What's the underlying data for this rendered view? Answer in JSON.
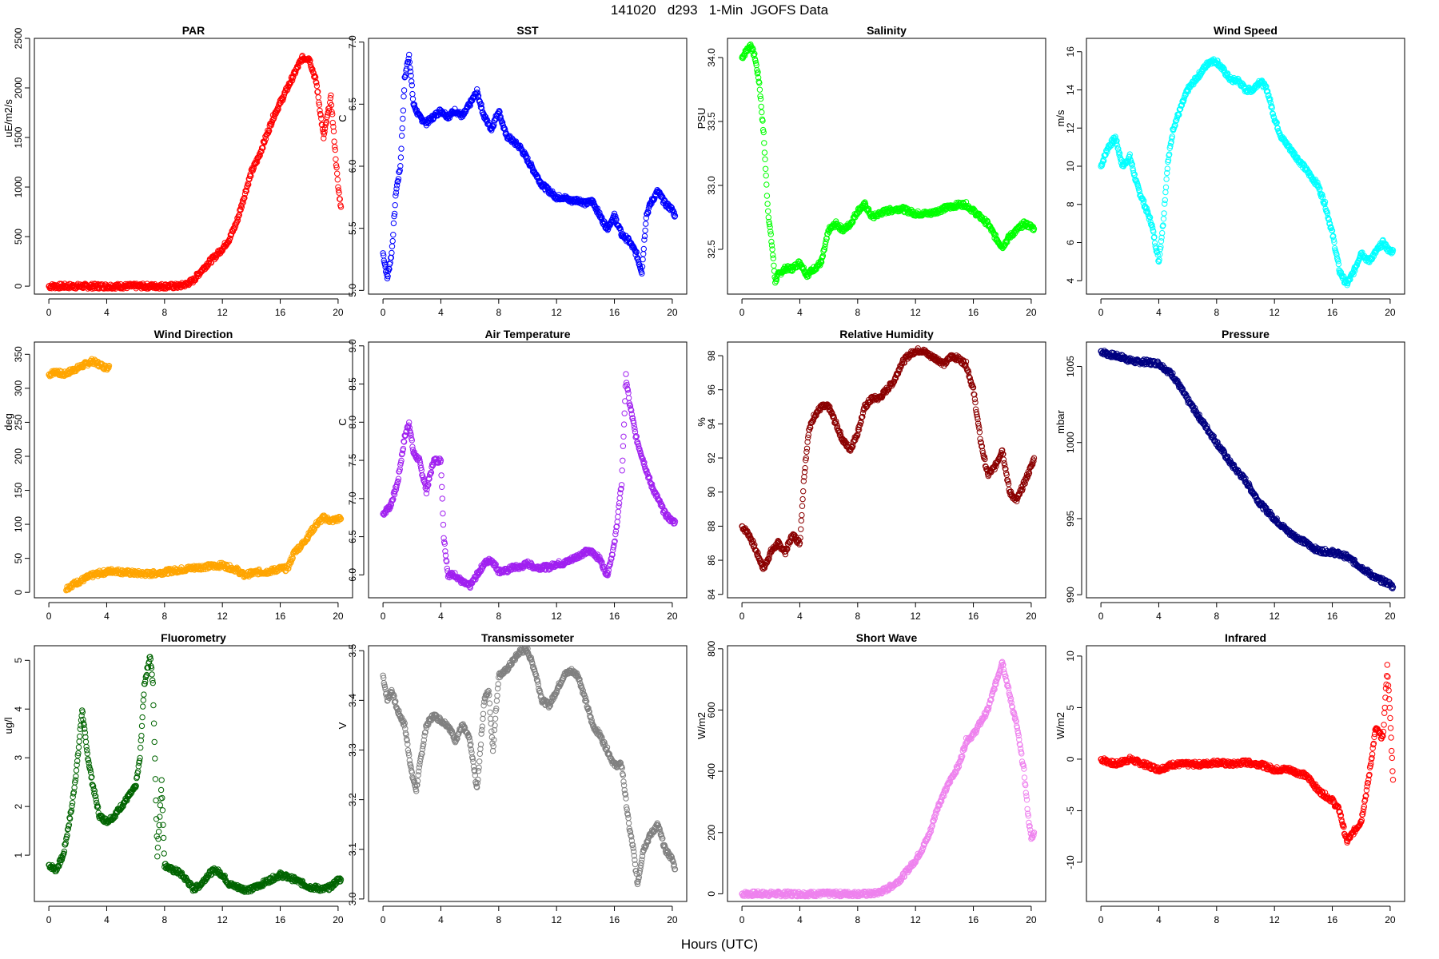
{
  "figure": {
    "title": "141020   d293   1-Min  JGOFS Data",
    "xlabel": "Hours (UTC)"
  },
  "chart_data": [
    {
      "type": "scatter",
      "title": "PAR",
      "ylabel": "uE/m2/s",
      "color": "#ff0000",
      "xlim": [
        -1,
        21
      ],
      "ylim": [
        -80,
        2500
      ],
      "xticks": [
        0,
        4,
        8,
        12,
        16,
        20
      ],
      "yticks": [
        0,
        500,
        1000,
        1500,
        2000,
        2500
      ],
      "x": [
        0,
        2,
        4,
        6,
        8,
        9,
        9.5,
        10,
        10.5,
        11,
        11.5,
        12,
        12.5,
        13,
        13.5,
        14,
        14.5,
        15,
        15.5,
        16,
        16.5,
        17,
        17.5,
        18,
        18.5,
        19,
        19.5,
        20,
        20.2
      ],
      "y": [
        0,
        0,
        0,
        0,
        0,
        0,
        20,
        60,
        150,
        230,
        300,
        380,
        480,
        650,
        900,
        1150,
        1300,
        1500,
        1700,
        1850,
        2000,
        2150,
        2300,
        2300,
        2050,
        1500,
        1900,
        1000,
        800
      ]
    },
    {
      "type": "scatter",
      "title": "SST",
      "ylabel": "C",
      "color": "#0000ff",
      "xlim": [
        -1,
        21
      ],
      "ylim": [
        4.97,
        7.03
      ],
      "xticks": [
        0,
        4,
        8,
        12,
        16,
        20
      ],
      "yticks": [
        5.0,
        5.5,
        6.0,
        6.5,
        7.0
      ],
      "x": [
        0,
        0.3,
        0.6,
        0.9,
        1.2,
        1.5,
        1.8,
        2.1,
        2.5,
        3,
        3.5,
        4,
        4.5,
        5,
        5.5,
        6,
        6.5,
        7,
        7.5,
        8,
        8.5,
        9,
        9.5,
        10,
        10.5,
        11,
        12,
        12.5,
        13,
        13.5,
        14,
        14.5,
        15,
        15.5,
        16,
        16.5,
        17,
        17.5,
        17.9,
        18.2,
        18.5,
        19,
        19.5,
        20,
        20.2
      ],
      "y": [
        5.3,
        5.1,
        5.3,
        5.8,
        6.0,
        6.7,
        6.9,
        6.5,
        6.4,
        6.35,
        6.4,
        6.45,
        6.4,
        6.45,
        6.4,
        6.5,
        6.6,
        6.4,
        6.3,
        6.45,
        6.25,
        6.2,
        6.15,
        6.05,
        5.95,
        5.85,
        5.75,
        5.75,
        5.72,
        5.73,
        5.7,
        5.72,
        5.6,
        5.5,
        5.6,
        5.45,
        5.4,
        5.3,
        5.15,
        5.6,
        5.7,
        5.8,
        5.7,
        5.65,
        5.6
      ]
    },
    {
      "type": "scatter",
      "title": "Salinity",
      "ylabel": "PSU",
      "color": "#00ff00",
      "xlim": [
        -1,
        21
      ],
      "ylim": [
        32.15,
        34.15
      ],
      "xticks": [
        0,
        4,
        8,
        12,
        16,
        20
      ],
      "yticks": [
        32.5,
        33.0,
        33.5,
        34.0
      ],
      "x": [
        0,
        0.3,
        0.6,
        0.9,
        1.2,
        1.5,
        1.8,
        2.1,
        2.3,
        2.5,
        3,
        3.5,
        4,
        4.5,
        5,
        5.5,
        6,
        6.5,
        7,
        7.5,
        8,
        8.5,
        9,
        9.5,
        10,
        11,
        12,
        13,
        14,
        15,
        15.5,
        16,
        16.5,
        17,
        17.5,
        18,
        18.5,
        19,
        19.5,
        20,
        20.2
      ],
      "y": [
        34.0,
        34.05,
        34.1,
        34.0,
        33.8,
        33.4,
        32.8,
        32.5,
        32.25,
        32.3,
        32.35,
        32.35,
        32.4,
        32.3,
        32.35,
        32.4,
        32.65,
        32.7,
        32.65,
        32.7,
        32.8,
        32.85,
        32.75,
        32.78,
        32.8,
        32.82,
        32.78,
        32.78,
        32.82,
        32.85,
        32.85,
        32.8,
        32.75,
        32.7,
        32.6,
        32.52,
        32.6,
        32.65,
        32.7,
        32.68,
        32.66
      ]
    },
    {
      "type": "scatter",
      "title": "Wind Speed",
      "ylabel": "m/s",
      "color": "#00ffff",
      "xlim": [
        -1,
        21
      ],
      "ylim": [
        3.3,
        16.7
      ],
      "xticks": [
        0,
        4,
        8,
        12,
        16,
        20
      ],
      "yticks": [
        4,
        6,
        8,
        10,
        12,
        14,
        16
      ],
      "x": [
        0,
        0.5,
        1,
        1.5,
        2,
        2.5,
        3,
        3.5,
        4,
        4.3,
        4.6,
        5,
        5.5,
        6,
        6.5,
        7,
        7.5,
        8,
        8.5,
        9,
        9.5,
        10,
        10.5,
        11,
        11.5,
        12,
        12.5,
        13,
        13.5,
        14,
        14.5,
        15,
        15.5,
        16,
        16.5,
        17,
        17.5,
        18,
        18.5,
        19,
        19.5,
        20,
        20.2
      ],
      "y": [
        10,
        11,
        11.5,
        10,
        10.5,
        9,
        8,
        7,
        5,
        7,
        10,
        12,
        13,
        14,
        14.5,
        15,
        15.5,
        15.5,
        15,
        14.5,
        14.5,
        14,
        14,
        14.5,
        14,
        12.5,
        11.5,
        11,
        10.5,
        10,
        9.5,
        9,
        8,
        6.5,
        4.5,
        3.8,
        4.5,
        5.5,
        5,
        5.5,
        6,
        5.5,
        5.6
      ]
    },
    {
      "type": "scatter",
      "title": "Wind Direction",
      "ylabel": "deg",
      "color": "#ffa500",
      "xlim": [
        -1,
        21
      ],
      "ylim": [
        -8,
        368
      ],
      "xticks": [
        0,
        4,
        8,
        12,
        16,
        20
      ],
      "yticks": [
        0,
        50,
        100,
        150,
        200,
        250,
        300,
        350
      ],
      "x": [
        0,
        0.5,
        1,
        1.5,
        2,
        2.5,
        3,
        3.5,
        4,
        4.2,
        1.2,
        1.5,
        2,
        2.5,
        3,
        3.5,
        4,
        4.5,
        5,
        6,
        7,
        8,
        9,
        10,
        11,
        12,
        13,
        13.5,
        14,
        14.5,
        15,
        15.5,
        16,
        16.5,
        17,
        17.5,
        18,
        18.5,
        19,
        19.5,
        20,
        20.2
      ],
      "y": [
        320,
        325,
        320,
        325,
        330,
        335,
        340,
        335,
        330,
        335,
        5,
        10,
        15,
        20,
        25,
        28,
        30,
        32,
        30,
        28,
        27,
        30,
        33,
        36,
        38,
        40,
        33,
        25,
        28,
        30,
        30,
        32,
        35,
        35,
        60,
        70,
        85,
        100,
        110,
        105,
        108,
        108
      ]
    },
    {
      "type": "scatter",
      "title": "Air Temperature",
      "ylabel": "C",
      "color": "#a020f0",
      "xlim": [
        -1,
        21
      ],
      "ylim": [
        5.7,
        9.05
      ],
      "xticks": [
        0,
        4,
        8,
        12,
        16,
        20
      ],
      "yticks": [
        6.0,
        6.5,
        7.0,
        7.5,
        8.0,
        8.5,
        9.0
      ],
      "x": [
        0,
        0.5,
        1,
        1.5,
        1.8,
        2.1,
        2.5,
        3,
        3.5,
        4,
        4.2,
        4.5,
        5,
        5.5,
        6,
        6.5,
        7,
        7.5,
        8,
        8.5,
        9,
        9.5,
        10,
        10.5,
        11,
        11.5,
        12,
        12.5,
        13,
        13.5,
        14,
        14.5,
        15,
        15.5,
        16,
        16.5,
        16.8,
        17,
        17.5,
        18,
        18.5,
        19,
        19.5,
        20,
        20.2
      ],
      "y": [
        6.8,
        6.9,
        7.2,
        7.8,
        8.0,
        7.6,
        7.5,
        7.1,
        7.5,
        7.5,
        6.5,
        6.0,
        6.0,
        5.9,
        5.85,
        6.0,
        6.15,
        6.2,
        6.05,
        6.05,
        6.1,
        6.1,
        6.15,
        6.1,
        6.1,
        6.1,
        6.15,
        6.15,
        6.2,
        6.25,
        6.3,
        6.3,
        6.2,
        6.0,
        6.4,
        7.2,
        8.6,
        8.3,
        7.8,
        7.5,
        7.2,
        7.0,
        6.8,
        6.7,
        6.7
      ]
    },
    {
      "type": "scatter",
      "title": "Relative Humidity",
      "ylabel": "%",
      "color": "#8b0000",
      "xlim": [
        -1,
        21
      ],
      "ylim": [
        83.8,
        98.8
      ],
      "xticks": [
        0,
        4,
        8,
        12,
        16,
        20
      ],
      "yticks": [
        84,
        86,
        88,
        90,
        92,
        94,
        96,
        98
      ],
      "x": [
        0,
        0.5,
        1,
        1.5,
        2,
        2.5,
        3,
        3.5,
        4,
        4.3,
        4.6,
        5,
        5.5,
        6,
        6.5,
        7,
        7.5,
        8,
        8.5,
        9,
        9.5,
        10,
        10.5,
        11,
        11.5,
        12,
        12.5,
        13,
        13.5,
        14,
        14.5,
        15,
        15.5,
        16,
        16.5,
        17,
        17.5,
        18,
        18.5,
        19,
        19.5,
        20,
        20.2
      ],
      "y": [
        88,
        87.5,
        86.5,
        85.5,
        86.5,
        87,
        86.5,
        87.5,
        87,
        91,
        93.5,
        94.5,
        95,
        95,
        94,
        93,
        92.5,
        93.5,
        95,
        95.5,
        95.5,
        96,
        96.5,
        97.5,
        98,
        98.3,
        98.3,
        98,
        97.8,
        97.5,
        98,
        97.8,
        97.5,
        96,
        93,
        91,
        91.5,
        92.5,
        90,
        89.5,
        90.5,
        91.5,
        92
      ]
    },
    {
      "type": "scatter",
      "title": "Pressure",
      "ylabel": "mbar",
      "color": "#000080",
      "xlim": [
        -1,
        21
      ],
      "ylim": [
        989.8,
        1006.6
      ],
      "xticks": [
        0,
        4,
        8,
        12,
        16,
        20
      ],
      "yticks": [
        990,
        995,
        1000,
        1005
      ],
      "x": [
        0,
        0.5,
        1,
        1.5,
        2,
        2.5,
        3,
        4,
        5,
        6,
        7,
        8,
        9,
        10,
        11,
        12,
        13,
        14,
        15,
        16,
        17,
        18,
        19,
        20,
        20.2
      ],
      "y": [
        1006,
        1005.8,
        1005.7,
        1005.6,
        1005.4,
        1005.3,
        1005.3,
        1005.2,
        1004.4,
        1002.8,
        1001.4,
        1000,
        998.6,
        997.5,
        996,
        995,
        994.1,
        993.5,
        992.9,
        992.8,
        992.5,
        991.8,
        991.1,
        990.7,
        990.5
      ]
    },
    {
      "type": "scatter",
      "title": "Fluorometry",
      "ylabel": "ug/l",
      "color": "#006400",
      "xlim": [
        -1,
        21
      ],
      "ylim": [
        0.05,
        5.3
      ],
      "xticks": [
        0,
        4,
        8,
        12,
        16,
        20
      ],
      "yticks": [
        1,
        2,
        3,
        4,
        5
      ],
      "x": [
        0,
        0.5,
        1,
        1.3,
        1.6,
        2,
        2.3,
        2.6,
        3,
        3.5,
        4,
        4.5,
        5,
        5.5,
        6,
        6.3,
        6.6,
        7,
        7.2,
        7.5,
        7.8,
        8,
        8.5,
        9,
        9.5,
        10,
        10.5,
        11,
        11.5,
        12,
        12.5,
        13,
        13.5,
        14,
        15,
        16,
        17,
        18,
        19,
        19.5,
        20,
        20.2
      ],
      "y": [
        0.8,
        0.7,
        1.0,
        1.5,
        2.0,
        3.0,
        4.0,
        3.2,
        2.5,
        1.8,
        1.7,
        1.8,
        2.0,
        2.2,
        2.4,
        3.0,
        4.5,
        5.1,
        4.5,
        1.0,
        2.5,
        0.8,
        0.7,
        0.65,
        0.5,
        0.3,
        0.4,
        0.6,
        0.7,
        0.6,
        0.4,
        0.35,
        0.3,
        0.3,
        0.45,
        0.6,
        0.5,
        0.35,
        0.3,
        0.35,
        0.5,
        0.5
      ]
    },
    {
      "type": "scatter",
      "title": "Transmissometer",
      "ylabel": "V",
      "color": "#808080",
      "xlim": [
        -1,
        21
      ],
      "ylim": [
        2.995,
        3.51
      ],
      "xticks": [
        0,
        4,
        8,
        12,
        16,
        20
      ],
      "yticks": [
        3.0,
        3.1,
        3.2,
        3.3,
        3.4,
        3.5
      ],
      "x": [
        0,
        0.3,
        0.6,
        1,
        1.5,
        2,
        2.3,
        2.6,
        3,
        3.5,
        4,
        4.5,
        5,
        5.5,
        6,
        6.5,
        7,
        7.3,
        7.6,
        8,
        8.5,
        9,
        9.5,
        10,
        10.5,
        11,
        11.5,
        12,
        12.5,
        13,
        13.5,
        14,
        14.5,
        15,
        15.5,
        16,
        16.5,
        17,
        17.3,
        17.6,
        18,
        18.5,
        19,
        19.5,
        20,
        20.2
      ],
      "y": [
        3.45,
        3.4,
        3.42,
        3.38,
        3.35,
        3.25,
        3.22,
        3.28,
        3.35,
        3.37,
        3.36,
        3.35,
        3.32,
        3.35,
        3.32,
        3.22,
        3.4,
        3.42,
        3.3,
        3.45,
        3.46,
        3.48,
        3.5,
        3.5,
        3.46,
        3.4,
        3.39,
        3.42,
        3.45,
        3.46,
        3.45,
        3.4,
        3.35,
        3.33,
        3.3,
        3.27,
        3.27,
        3.15,
        3.1,
        3.03,
        3.1,
        3.13,
        3.15,
        3.1,
        3.08,
        3.06
      ]
    },
    {
      "type": "scatter",
      "title": "Short Wave",
      "ylabel": "W/m2",
      "color": "#ee82ee",
      "xlim": [
        -1,
        21
      ],
      "ylim": [
        -25,
        810
      ],
      "xticks": [
        0,
        4,
        8,
        12,
        16,
        20
      ],
      "yticks": [
        0,
        200,
        400,
        600,
        800
      ],
      "x": [
        0,
        2,
        4,
        6,
        8,
        9,
        9.5,
        10,
        10.5,
        11,
        11.5,
        12,
        12.5,
        13,
        13.5,
        14,
        14.5,
        15,
        15.5,
        16,
        16.5,
        17,
        17.5,
        18,
        18.5,
        19,
        19.5,
        19.8,
        20,
        20.2
      ],
      "y": [
        0,
        0,
        0,
        0,
        0,
        0,
        5,
        15,
        30,
        50,
        80,
        110,
        150,
        200,
        280,
        330,
        380,
        420,
        500,
        520,
        560,
        600,
        680,
        760,
        650,
        550,
        400,
        250,
        180,
        200
      ]
    },
    {
      "type": "scatter",
      "title": "Infrared",
      "ylabel": "W/m2",
      "color": "#ff0000",
      "xlim": [
        -1,
        21
      ],
      "ylim": [
        -13.8,
        11
      ],
      "xticks": [
        0,
        4,
        8,
        12,
        16,
        20
      ],
      "yticks": [
        -10,
        -5,
        0,
        5,
        10
      ],
      "x": [
        0,
        1,
        2,
        3,
        4,
        5,
        6,
        7,
        8,
        9,
        10,
        11,
        12,
        13,
        14,
        14.5,
        15,
        15.5,
        16,
        16.5,
        17,
        17.5,
        18,
        18.5,
        19,
        19.5,
        19.8,
        20,
        20.2
      ],
      "y": [
        0,
        -0.5,
        0,
        -0.5,
        -1,
        -0.5,
        -0.5,
        -0.5,
        -0.3,
        -0.5,
        -0.3,
        -0.5,
        -1,
        -1,
        -1.5,
        -2,
        -3,
        -3.5,
        -4,
        -5,
        -8,
        -7,
        -6,
        -2,
        3,
        2,
        9,
        4,
        -2
      ]
    }
  ]
}
